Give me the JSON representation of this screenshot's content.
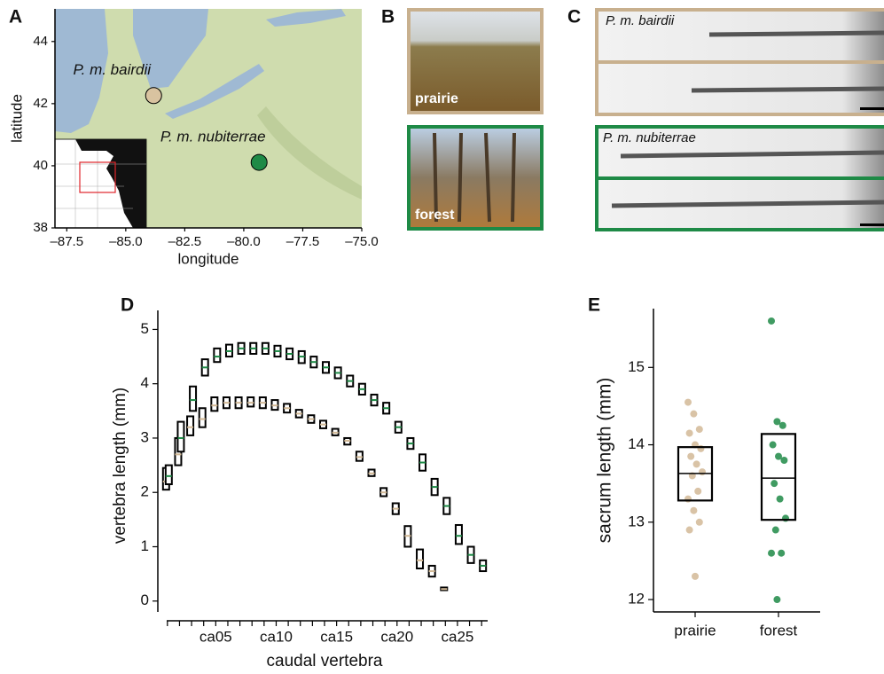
{
  "panel_labels": [
    "A",
    "B",
    "C",
    "D",
    "E"
  ],
  "photos": [
    {
      "label": "prairie"
    },
    {
      "label": "forest"
    }
  ],
  "xrays": [
    {
      "label": "P. m. bairdii"
    },
    {
      "label": "P. m. nubiterrae"
    }
  ],
  "chart_data": [
    {
      "type": "map",
      "xlabel": "longitude",
      "ylabel": "latitude",
      "xlim": [
        -88,
        -75
      ],
      "ylim": [
        38,
        45.05
      ],
      "xticks": [
        {
          "value": -87.5,
          "label": "–87.5"
        },
        {
          "value": -85,
          "label": "–85.0"
        },
        {
          "value": -82.5,
          "label": "–82.5"
        },
        {
          "value": -80,
          "label": "–80.0"
        },
        {
          "value": -77.5,
          "label": "–77.5"
        },
        {
          "value": -75,
          "label": "–75.0"
        }
      ],
      "yticks": [
        38,
        40,
        42,
        44
      ],
      "series": [
        {
          "name": "P. m. bairdii",
          "color": "#d9c3a0",
          "x": [
            -83.82
          ],
          "y": [
            42.26
          ]
        },
        {
          "name": "P. m. nubiterrae",
          "color": "#1e8a46",
          "x": [
            -79.35
          ],
          "y": [
            40.11
          ]
        }
      ]
    },
    {
      "type": "box",
      "xlabel": "caudal vertebra",
      "ylabel": "vertebra length (mm)",
      "categories": [
        null,
        null,
        null,
        null,
        "ca05",
        null,
        null,
        null,
        null,
        "ca10",
        null,
        null,
        null,
        null,
        "ca15",
        null,
        null,
        null,
        null,
        "ca20",
        null,
        null,
        null,
        null,
        "ca25",
        null,
        null
      ],
      "ylim": [
        -0.2,
        5.35
      ],
      "yticks": [
        0,
        1,
        2,
        3,
        4,
        5
      ],
      "series": [
        {
          "color": "#d2b996",
          "median": [
            2.2,
            2.7,
            3.2,
            3.35,
            3.6,
            3.65,
            3.65,
            3.65,
            3.65,
            3.6,
            3.55,
            3.45,
            3.35,
            3.25,
            3.1,
            2.95,
            2.65,
            2.35,
            2.0,
            1.7,
            1.2,
            0.75,
            0.55,
            0.22,
            null,
            null,
            null
          ],
          "q1": [
            2.05,
            2.5,
            3.05,
            3.2,
            3.5,
            3.55,
            3.55,
            3.58,
            3.55,
            3.52,
            3.47,
            3.38,
            3.28,
            3.18,
            3.05,
            2.88,
            2.58,
            2.3,
            1.93,
            1.6,
            1.0,
            0.6,
            0.45,
            0.2,
            null,
            null,
            null
          ],
          "q3": [
            2.45,
            3.0,
            3.4,
            3.55,
            3.75,
            3.75,
            3.75,
            3.75,
            3.75,
            3.7,
            3.63,
            3.52,
            3.42,
            3.32,
            3.17,
            3.0,
            2.75,
            2.42,
            2.08,
            1.8,
            1.38,
            0.95,
            0.65,
            0.25,
            null,
            null,
            null
          ]
        },
        {
          "color": "#1e8a46",
          "median": [
            2.3,
            3.0,
            3.7,
            4.3,
            4.5,
            4.6,
            4.65,
            4.65,
            4.65,
            4.6,
            4.55,
            4.5,
            4.4,
            4.3,
            4.2,
            4.05,
            3.9,
            3.7,
            3.55,
            3.2,
            2.9,
            2.55,
            2.1,
            1.75,
            1.2,
            0.85,
            0.65
          ],
          "q1": [
            2.15,
            2.75,
            3.5,
            4.15,
            4.4,
            4.5,
            4.55,
            4.55,
            4.55,
            4.5,
            4.45,
            4.38,
            4.3,
            4.2,
            4.1,
            3.95,
            3.8,
            3.6,
            3.45,
            3.1,
            2.8,
            2.4,
            1.95,
            1.6,
            1.05,
            0.7,
            0.55
          ],
          "q3": [
            2.5,
            3.3,
            3.95,
            4.45,
            4.65,
            4.72,
            4.75,
            4.75,
            4.75,
            4.7,
            4.65,
            4.6,
            4.5,
            4.4,
            4.3,
            4.15,
            4.0,
            3.8,
            3.65,
            3.3,
            3.0,
            2.7,
            2.25,
            1.9,
            1.4,
            1.0,
            0.75
          ]
        }
      ]
    },
    {
      "type": "boxstrip",
      "ylabel": "sacrum length (mm)",
      "categories": [
        "prairie",
        "forest"
      ],
      "colors": [
        "#d2b996",
        "#1e8a46"
      ],
      "ylim": [
        11.84,
        15.76
      ],
      "yticks": [
        12,
        13,
        14,
        15
      ],
      "q1": [
        13.28,
        13.03
      ],
      "median": [
        13.63,
        13.57
      ],
      "q3": [
        13.97,
        14.14
      ],
      "points": [
        [
          14.55,
          14.4,
          14.2,
          14.15,
          14.0,
          13.95,
          13.85,
          13.75,
          13.65,
          13.6,
          13.4,
          13.3,
          13.15,
          13.0,
          12.9,
          12.3
        ],
        [
          15.6,
          14.3,
          14.25,
          14.0,
          13.85,
          13.8,
          13.5,
          13.3,
          13.05,
          12.9,
          12.6,
          12.6,
          12.0
        ]
      ]
    }
  ]
}
